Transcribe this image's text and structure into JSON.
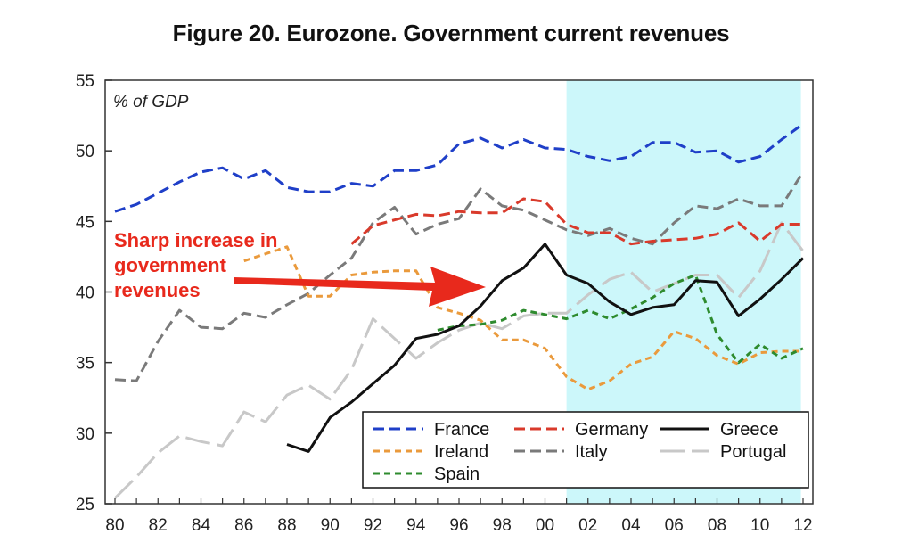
{
  "title": "Figure 20. Eurozone. Government current revenues",
  "chart_data": {
    "type": "line",
    "unit_label": "% of GDP",
    "x_tick_labels": [
      "80",
      "82",
      "84",
      "86",
      "88",
      "90",
      "92",
      "94",
      "96",
      "98",
      "00",
      "02",
      "04",
      "06",
      "08",
      "10",
      "12"
    ],
    "x_tick_years": [
      1980,
      1982,
      1984,
      1986,
      1988,
      1990,
      1992,
      1994,
      1996,
      1998,
      2000,
      2002,
      2004,
      2006,
      2008,
      2010,
      2012
    ],
    "xlim": [
      1980,
      2012
    ],
    "y_ticks": [
      25,
      30,
      35,
      40,
      45,
      50,
      55
    ],
    "ylim": [
      25,
      55
    ],
    "shaded_region": [
      2001,
      2011.9
    ],
    "shade_color": "#ccf7fa",
    "annotation": {
      "lines": [
        "Sharp increase in",
        "government",
        "revenues"
      ],
      "color": "#e8291c"
    },
    "series": [
      {
        "name": "France",
        "color": "#1f3fc8",
        "dash": "12 6",
        "width": 3,
        "x": [
          1980,
          1981,
          1982,
          1983,
          1984,
          1985,
          1986,
          1987,
          1988,
          1989,
          1990,
          1991,
          1992,
          1993,
          1994,
          1995,
          1996,
          1997,
          1998,
          1999,
          2000,
          2001,
          2002,
          2003,
          2004,
          2005,
          2006,
          2007,
          2008,
          2009,
          2010,
          2011,
          2012
        ],
        "y": [
          45.7,
          46.2,
          47.0,
          47.8,
          48.5,
          48.8,
          48.0,
          48.6,
          47.4,
          47.1,
          47.1,
          47.7,
          47.5,
          48.6,
          48.6,
          49.0,
          50.5,
          50.9,
          50.2,
          50.8,
          50.2,
          50.1,
          49.6,
          49.3,
          49.6,
          50.6,
          50.6,
          49.9,
          50.0,
          49.2,
          49.6,
          50.8,
          51.9
        ]
      },
      {
        "name": "Germany",
        "color": "#d93a2b",
        "dash": "12 6",
        "width": 3,
        "x": [
          1991,
          1992,
          1993,
          1994,
          1995,
          1996,
          1997,
          1998,
          1999,
          2000,
          2001,
          2002,
          2003,
          2004,
          2005,
          2006,
          2007,
          2008,
          2009,
          2010,
          2011,
          2012
        ],
        "y": [
          43.4,
          44.7,
          45.1,
          45.5,
          45.4,
          45.7,
          45.6,
          45.6,
          46.6,
          46.4,
          44.8,
          44.2,
          44.2,
          43.4,
          43.6,
          43.7,
          43.8,
          44.1,
          44.9,
          43.6,
          44.8,
          44.8
        ]
      },
      {
        "name": "Greece",
        "color": "#111111",
        "dash": "",
        "width": 3,
        "x": [
          1988,
          1989,
          1990,
          1991,
          1992,
          1993,
          1994,
          1995,
          1996,
          1997,
          1998,
          1999,
          2000,
          2001,
          2002,
          2003,
          2004,
          2005,
          2006,
          2007,
          2008,
          2009,
          2010,
          2011,
          2012
        ],
        "y": [
          29.2,
          28.7,
          31.1,
          32.2,
          33.5,
          34.8,
          36.7,
          37.0,
          37.6,
          39.0,
          40.8,
          41.7,
          43.4,
          41.2,
          40.6,
          39.3,
          38.4,
          38.9,
          39.1,
          40.8,
          40.7,
          38.3,
          39.5,
          40.9,
          42.4
        ]
      },
      {
        "name": "Ireland",
        "color": "#ea9a3c",
        "dash": "7 5",
        "width": 3,
        "x": [
          1986,
          1987,
          1988,
          1989,
          1990,
          1991,
          1992,
          1993,
          1994,
          1995,
          1996,
          1997,
          1998,
          1999,
          2000,
          2001,
          2002,
          2003,
          2004,
          2005,
          2006,
          2007,
          2008,
          2009,
          2010,
          2011,
          2012
        ],
        "y": [
          42.2,
          42.7,
          43.2,
          39.7,
          39.7,
          41.2,
          41.4,
          41.5,
          41.5,
          38.9,
          38.5,
          38.0,
          36.6,
          36.6,
          36.0,
          34.0,
          33.1,
          33.7,
          34.9,
          35.4,
          37.2,
          36.7,
          35.5,
          34.9,
          35.7,
          35.8,
          35.8
        ]
      },
      {
        "name": "Italy",
        "color": "#7a7a7a",
        "dash": "12 6",
        "width": 3,
        "x": [
          1980,
          1981,
          1982,
          1983,
          1984,
          1985,
          1986,
          1987,
          1988,
          1989,
          1990,
          1991,
          1992,
          1993,
          1994,
          1995,
          1996,
          1997,
          1998,
          1999,
          2000,
          2001,
          2002,
          2003,
          2004,
          2005,
          2006,
          2007,
          2008,
          2009,
          2010,
          2011,
          2012
        ],
        "y": [
          33.8,
          33.7,
          36.5,
          38.7,
          37.5,
          37.4,
          38.5,
          38.2,
          39.1,
          39.9,
          41.2,
          42.4,
          44.9,
          46.0,
          44.1,
          44.8,
          45.2,
          47.3,
          46.1,
          45.8,
          45.1,
          44.4,
          44.0,
          44.5,
          43.8,
          43.4,
          44.9,
          46.1,
          45.9,
          46.6,
          46.1,
          46.1,
          48.5
        ]
      },
      {
        "name": "Portugal",
        "color": "#c8c8c8",
        "dash": "28 8",
        "width": 3,
        "x": [
          1980,
          1981,
          1982,
          1983,
          1984,
          1985,
          1986,
          1987,
          1988,
          1989,
          1990,
          1991,
          1992,
          1993,
          1994,
          1995,
          1996,
          1997,
          1998,
          1999,
          2000,
          2001,
          2002,
          2003,
          2004,
          2005,
          2006,
          2007,
          2008,
          2009,
          2010,
          2011,
          2012
        ],
        "y": [
          25.4,
          26.9,
          28.6,
          29.8,
          29.4,
          29.1,
          31.5,
          30.8,
          32.7,
          33.4,
          32.4,
          34.5,
          38.1,
          36.7,
          35.3,
          36.4,
          37.3,
          37.8,
          37.4,
          38.3,
          38.5,
          38.5,
          39.8,
          40.9,
          41.4,
          40.0,
          40.6,
          41.2,
          41.2,
          39.6,
          41.5,
          44.9,
          42.9
        ]
      },
      {
        "name": "Spain",
        "color": "#2e8b2e",
        "dash": "7 5",
        "width": 3,
        "x": [
          1995,
          1996,
          1997,
          1998,
          1999,
          2000,
          2001,
          2002,
          2003,
          2004,
          2005,
          2006,
          2007,
          2008,
          2009,
          2010,
          2011,
          2012
        ],
        "y": [
          37.3,
          37.6,
          37.7,
          38.0,
          38.7,
          38.4,
          38.1,
          38.7,
          38.1,
          38.8,
          39.6,
          40.6,
          41.2,
          37.0,
          35.0,
          36.3,
          35.3,
          36.0
        ]
      }
    ]
  }
}
